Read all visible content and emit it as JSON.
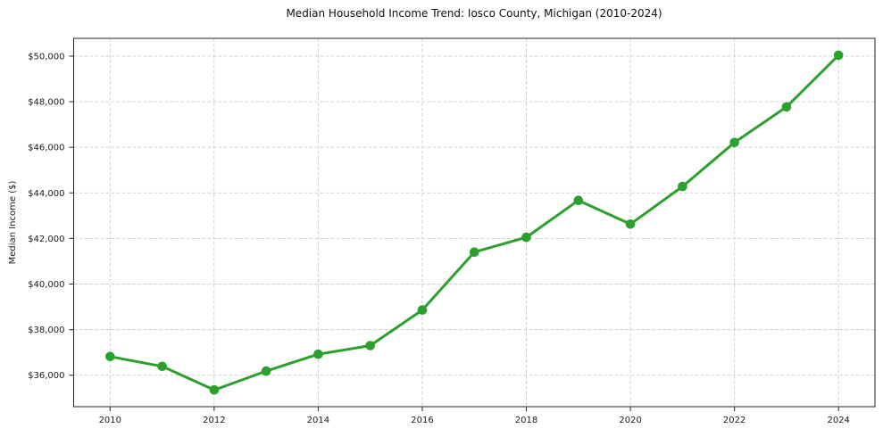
{
  "chart_data": {
    "type": "line",
    "title": "Median Household Income Trend: Iosco County, Michigan (2010-2024)",
    "xlabel": "",
    "ylabel": "Median Income ($)",
    "x": [
      2010,
      2011,
      2012,
      2013,
      2014,
      2015,
      2016,
      2017,
      2018,
      2019,
      2020,
      2021,
      2022,
      2023,
      2024
    ],
    "values": [
      36820,
      36390,
      35350,
      36180,
      36920,
      37300,
      38860,
      41400,
      42050,
      43670,
      42630,
      44280,
      46210,
      47770,
      50040
    ],
    "xticks": {
      "values": [
        2010,
        2012,
        2014,
        2016,
        2018,
        2020,
        2022,
        2024
      ],
      "labels": [
        "2010",
        "2012",
        "2014",
        "2016",
        "2018",
        "2020",
        "2022",
        "2024"
      ]
    },
    "yticks": {
      "values": [
        36000,
        38000,
        40000,
        42000,
        44000,
        46000,
        48000,
        50000
      ],
      "labels": [
        "$36,000",
        "$38,000",
        "$40,000",
        "$42,000",
        "$44,000",
        "$46,000",
        "$48,000",
        "$50,000"
      ]
    },
    "xlim": [
      2009.3,
      2024.7
    ],
    "ylim": [
      34620,
      50780
    ],
    "grid": true,
    "legend": "none",
    "line_color": "#2ca02c",
    "marker": "circle",
    "marker_radius": 5.3,
    "grid_color": "#cccccc",
    "axis_color": "#262626",
    "background": "#ffffff"
  }
}
